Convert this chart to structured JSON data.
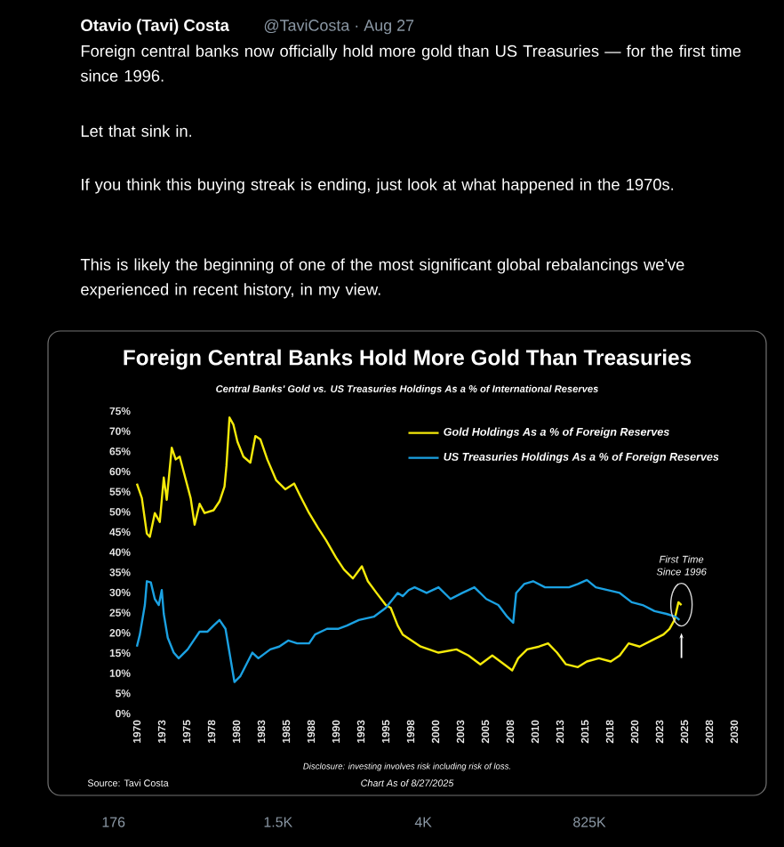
{
  "chart_data": {
    "type": "line",
    "title": "Foreign Central Banks Hold More Gold Than Treasuries",
    "subtitle": "Central Banks' Gold vs. US Treasuries Holdings As a % of International Reserves",
    "xlim": [
      1970,
      2030
    ],
    "xticks": [
      1970,
      {
        "value": 1972.5,
        "label": "1973"
      },
      1975,
      {
        "value": 1977.5,
        "label": "1978"
      },
      1980,
      {
        "value": 1982.5,
        "label": "1983"
      },
      1985,
      {
        "value": 1987.5,
        "label": "1988"
      },
      1990,
      {
        "value": 1992.5,
        "label": "1993"
      },
      1995,
      {
        "value": 1997.5,
        "label": "1998"
      },
      2000,
      {
        "value": 2002.5,
        "label": "2003"
      },
      2005,
      {
        "value": 2007.5,
        "label": "2008"
      },
      2010,
      {
        "value": 2012.5,
        "label": "2013"
      },
      2015,
      {
        "value": 2017.5,
        "label": "2018"
      },
      2020,
      {
        "value": 2022.5,
        "label": "2023"
      },
      2025,
      {
        "value": 2027.5,
        "label": "2028"
      },
      2030
    ],
    "ylim": [
      0,
      75
    ],
    "yticks": [
      {
        "value": 0,
        "label": "0%"
      },
      {
        "value": 5,
        "label": "5%"
      },
      {
        "value": 10,
        "label": "10%"
      },
      {
        "value": 15,
        "label": "15%"
      },
      {
        "value": 20,
        "label": "20%"
      },
      {
        "value": 25,
        "label": "25%"
      },
      {
        "value": 30,
        "label": "30%"
      },
      {
        "value": 35,
        "label": "35%"
      },
      {
        "value": 40,
        "label": "40%"
      },
      {
        "value": 45,
        "label": "45%"
      },
      {
        "value": 50,
        "label": "50%"
      },
      {
        "value": 55,
        "label": "55%"
      },
      {
        "value": 60,
        "label": "60%"
      },
      {
        "value": 65,
        "label": "65%"
      },
      {
        "value": 70,
        "label": "70%"
      },
      {
        "value": 75,
        "label": "75%"
      }
    ],
    "legend": "top right",
    "series": [
      {
        "name": "Gold Holdings As a % of Foreign Reserves",
        "color": "#f5ea0a",
        "x": [
          1970,
          1970.5,
          1971,
          1971.3,
          1971.8,
          1972.3,
          1972.7,
          1973,
          1973.5,
          1973.9,
          1974.3,
          1974.8,
          1975.4,
          1975.8,
          1976.3,
          1976.8,
          1977.7,
          1978.3,
          1978.8,
          1979,
          1979.3,
          1979.7,
          1980.1,
          1980.7,
          1981.4,
          1981.9,
          1982.4,
          1983.1,
          1984,
          1984.9,
          1985.8,
          1986.4,
          1987.3,
          1988.2,
          1989,
          1990,
          1990.8,
          1991.7,
          1992.6,
          1993.2,
          1994.1,
          1995,
          1995.5,
          1996.2,
          1996.7,
          1998.5,
          2000.3,
          2002.1,
          2003.3,
          2004.5,
          2005.7,
          2006.9,
          2007.7,
          2008.3,
          2009.2,
          2010.4,
          2011.3,
          2012.2,
          2013.1,
          2014.3,
          2015.2,
          2016.4,
          2017.6,
          2018.5,
          2019.4,
          2020.5,
          2021.7,
          2022.9,
          2023.5,
          2024,
          2024.4,
          2024.7
        ],
        "values": [
          57,
          53.4,
          44.6,
          43.8,
          49.7,
          47.5,
          58.5,
          53,
          65.9,
          63,
          63.7,
          59,
          53.4,
          46.8,
          52,
          49.7,
          50.4,
          52.6,
          56.3,
          61.5,
          73.4,
          71.6,
          67.4,
          63.7,
          62.2,
          68.8,
          68,
          63,
          57.8,
          55.6,
          57,
          54,
          49.7,
          46,
          43,
          38.7,
          35.7,
          33.5,
          36.5,
          32.8,
          29.8,
          26.9,
          26.2,
          21.8,
          19.6,
          16.6,
          15.1,
          15.9,
          14.4,
          12.2,
          14.4,
          12.2,
          10.7,
          13.7,
          15.9,
          16.6,
          17.4,
          15.1,
          12.2,
          11.5,
          12.9,
          13.7,
          12.9,
          14.4,
          17.4,
          16.6,
          18.1,
          19.6,
          21,
          23.2,
          27.6,
          26.9
        ]
      },
      {
        "name": "US Treasuries Holdings As a % of Foreign Reserves",
        "color": "#1ba1e2",
        "x": [
          1970,
          1970.3,
          1970.8,
          1971,
          1971.4,
          1971.8,
          1972.2,
          1972.5,
          1972.7,
          1973.1,
          1973.7,
          1974.2,
          1975.1,
          1975.7,
          1976.3,
          1977.1,
          1977.7,
          1978.3,
          1978.9,
          1979.5,
          1979.8,
          1980.4,
          1981,
          1981.6,
          1982.2,
          1983.4,
          1984.3,
          1985.2,
          1986.1,
          1987.3,
          1987.9,
          1989.1,
          1990.2,
          1991.1,
          1992.3,
          1993.8,
          1995,
          1996.2,
          1996.7,
          1997.3,
          1997.9,
          1999.1,
          2000.3,
          2001.5,
          2002.7,
          2003.9,
          2005.1,
          2006.3,
          2007.2,
          2007.8,
          2008.1,
          2008.9,
          2009.8,
          2011,
          2012.2,
          2013.4,
          2014.3,
          2015.2,
          2016.1,
          2017.3,
          2018.5,
          2019.7,
          2020.8,
          2022,
          2023.2,
          2024.1,
          2024.5
        ],
        "values": [
          16.6,
          19.6,
          26.9,
          32.8,
          32.5,
          28.4,
          26.9,
          30.6,
          24.7,
          18.8,
          15.1,
          13.7,
          15.9,
          18.1,
          20.3,
          20.3,
          21.8,
          23.2,
          21,
          12.2,
          7.8,
          9.3,
          12.2,
          15.1,
          13.7,
          15.9,
          16.6,
          18.1,
          17.4,
          17.4,
          19.6,
          21,
          21,
          21.8,
          23.2,
          24,
          26.2,
          29.9,
          29.1,
          30.6,
          31.3,
          29.9,
          31.3,
          28.4,
          29.9,
          31.3,
          28.4,
          26.9,
          24,
          22.5,
          29.9,
          32.1,
          32.8,
          31.3,
          31.3,
          31.3,
          32.1,
          33.1,
          31.3,
          30.6,
          29.9,
          27.6,
          26.9,
          25.4,
          24.7,
          24,
          23.2
        ]
      }
    ],
    "annotations": [
      "Otavio (Tavi) Costa",
      "@TaviCosta · Aug 27",
      "Foreign central banks now officially hold more gold than US Treasuries — for the first time since 1996.",
      "Let that sink in.",
      "If you think this buying streak is ending, just look at what happened in the 1970s.",
      "This is likely the beginning of one of the most significant global rebalancings we've experienced in recent history, in my view.",
      "Disclosure: investing involves risk including risk of loss.",
      "Source: Tavi Costa",
      "Chart As of 8/27/2025",
      "176",
      "1.5K",
      "4K",
      "825K",
      {
        "text": "First Time Since 1996",
        "x": 2024.7,
        "y": 27
      }
    ]
  }
}
